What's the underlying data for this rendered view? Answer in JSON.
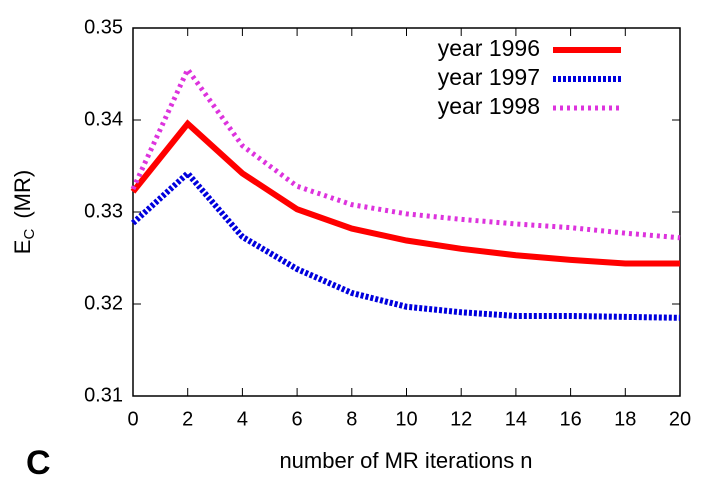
{
  "chart_data": {
    "type": "line",
    "panel_label": "C",
    "x_label": "number of MR iterations n",
    "y_label": "E",
    "y_label_sub": "C",
    "y_label_unit": "(MR)",
    "x": [
      0,
      2,
      4,
      6,
      8,
      10,
      12,
      14,
      16,
      18,
      20
    ],
    "series": [
      {
        "name": "year 1996",
        "color": "#ff0000",
        "line_style": "solid",
        "values": [
          0.3322,
          0.3396,
          0.3342,
          0.3303,
          0.3282,
          0.3269,
          0.326,
          0.3253,
          0.3248,
          0.3244,
          0.3244
        ]
      },
      {
        "name": "year 1997",
        "color": "#0000dd",
        "line_style": "dotted",
        "values": [
          0.3288,
          0.3342,
          0.3273,
          0.3238,
          0.3212,
          0.3197,
          0.3191,
          0.3187,
          0.3187,
          0.3186,
          0.3185
        ]
      },
      {
        "name": "year 1998",
        "color": "#dd33dd",
        "line_style": "dashed",
        "values": [
          0.3325,
          0.3455,
          0.3372,
          0.3328,
          0.3308,
          0.3298,
          0.3292,
          0.3287,
          0.3283,
          0.3277,
          0.3272
        ]
      }
    ],
    "xlim": [
      0,
      20
    ],
    "xticks": [
      0,
      2,
      4,
      6,
      8,
      10,
      12,
      14,
      16,
      18,
      20
    ],
    "ylim": [
      0.31,
      0.35
    ],
    "yticks": [
      0.31,
      0.32,
      0.33,
      0.34,
      0.35
    ],
    "grid": false,
    "legend": "top-right"
  }
}
